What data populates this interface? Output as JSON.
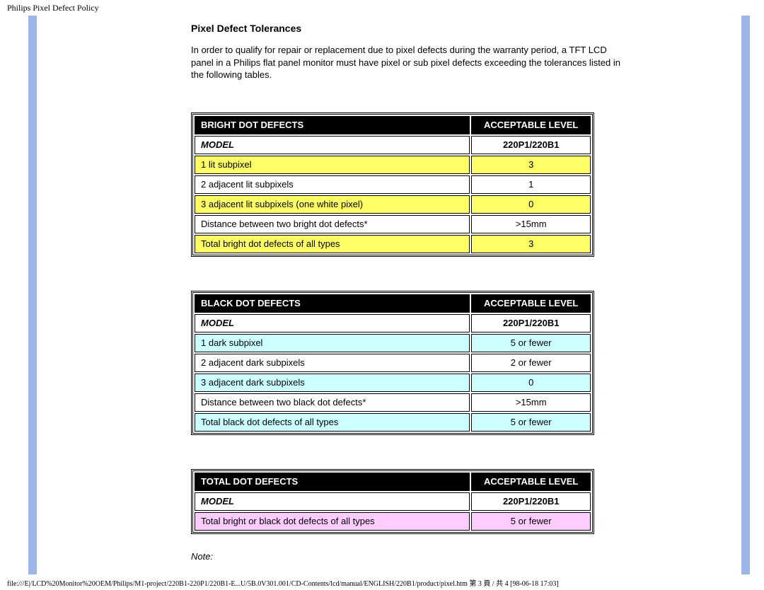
{
  "page": {
    "header": "Philips Pixel Defect Policy",
    "title": "Pixel Defect Tolerances",
    "intro": "In order to qualify for repair or replacement due to pixel defects during the warranty period, a TFT LCD panel in a Philips flat panel monitor must have pixel or sub pixel defects exceeding the tolerances listed in the following tables.",
    "note": "Note:",
    "footer": "file:///E|/LCD%20Monitor%20OEM/Philips/M1-project/220B1-220P1/220B1-E...U/5B.0V301.001/CD-Contents/lcd/manual/ENGLISH/220B1/product/pixel.htm 第 3 頁 / 共 4  [98-06-18 17:03]"
  },
  "colors": {
    "band": "#9db6e8",
    "yellow": "#ffff66",
    "cyan": "#ccffff",
    "pink": "#ffccff",
    "headerBg": "#000000",
    "headerFg": "#ffffff"
  },
  "tables": [
    {
      "head": [
        "BRIGHT DOT DEFECTS",
        "ACCEPTABLE LEVEL"
      ],
      "model": [
        "MODEL",
        "220P1/220B1"
      ],
      "rowStyle": "yellow",
      "rows": [
        {
          "c": [
            "1 lit subpixel",
            "3"
          ],
          "hl": true
        },
        {
          "c": [
            "2 adjacent lit subpixels",
            "1"
          ],
          "hl": false
        },
        {
          "c": [
            "3 adjacent lit subpixels (one white pixel)",
            "0"
          ],
          "hl": true
        },
        {
          "c": [
            "Distance between two bright dot defects*",
            ">15mm"
          ],
          "hl": false
        },
        {
          "c": [
            "Total bright dot defects of all types",
            "3"
          ],
          "hl": true
        }
      ]
    },
    {
      "head": [
        "BLACK DOT DEFECTS",
        "ACCEPTABLE LEVEL"
      ],
      "model": [
        "MODEL",
        "220P1/220B1"
      ],
      "rowStyle": "cyan",
      "rows": [
        {
          "c": [
            "1 dark subpixel",
            "5 or fewer"
          ],
          "hl": true
        },
        {
          "c": [
            "2 adjacent dark subpixels",
            "2 or fewer"
          ],
          "hl": false
        },
        {
          "c": [
            "3 adjacent dark subpixels",
            "0"
          ],
          "hl": true
        },
        {
          "c": [
            "Distance between two black dot defects*",
            ">15mm"
          ],
          "hl": false
        },
        {
          "c": [
            "Total black dot defects of all types",
            "5 or fewer"
          ],
          "hl": true
        }
      ]
    },
    {
      "head": [
        "TOTAL DOT DEFECTS",
        "ACCEPTABLE LEVEL"
      ],
      "model": [
        "MODEL",
        "220P1/220B1"
      ],
      "rowStyle": "pink",
      "rows": [
        {
          "c": [
            "Total bright or black dot defects of all types",
            "5 or fewer"
          ],
          "hl": true
        }
      ]
    }
  ]
}
